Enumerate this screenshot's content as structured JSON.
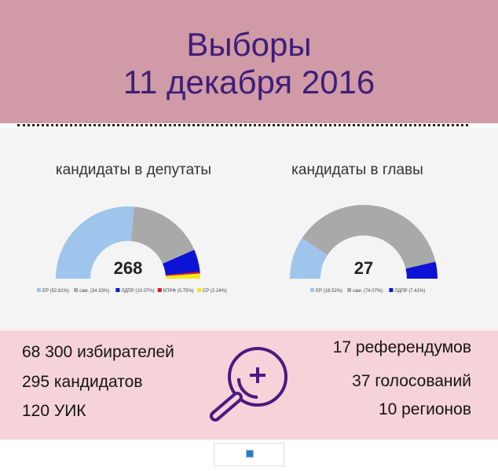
{
  "header": {
    "title_line1": "Выборы",
    "title_line2": "11 декабря 2016"
  },
  "colors": {
    "header_bg": "#d09aa6",
    "title_text": "#3e1e7a",
    "stats_bg": "#f6d2d9",
    "icon_stroke": "#4a1a80"
  },
  "chart_data": [
    {
      "type": "pie",
      "style": "half-donut",
      "title": "кандидаты в депутаты",
      "center_label": "268",
      "categories": [
        "ЕР (52.61%)",
        "сам. (34.33%)",
        "ЛДПР (10.07%)",
        "КПРФ (0.75%)",
        "СР (2.24%)"
      ],
      "values": [
        52.61,
        34.33,
        10.07,
        0.75,
        2.24
      ],
      "colors": [
        "#9fc5ed",
        "#a9a9a9",
        "#0d13d4",
        "#e21313",
        "#f4e81a"
      ],
      "legend_position": "bottom"
    },
    {
      "type": "pie",
      "style": "half-donut",
      "title": "кандидаты в главы",
      "center_label": "27",
      "categories": [
        "ЕР (18.52%)",
        "сам. (74.07%)",
        "ЛДПР (7.41%)"
      ],
      "values": [
        18.52,
        74.07,
        7.41
      ],
      "colors": [
        "#9fc5ed",
        "#a9a9a9",
        "#0d13d4"
      ],
      "legend_position": "bottom"
    }
  ],
  "stats": {
    "voters": "68 300 избирателей",
    "candidates": "295 кандидатов",
    "commissions": "120 УИК",
    "referendums": "17 референдумов",
    "votes": "37 голосований",
    "regions": "10 регионов"
  },
  "icons": {
    "center": "magnifier-plus-icon",
    "footer": "small-blue-square-icon"
  }
}
